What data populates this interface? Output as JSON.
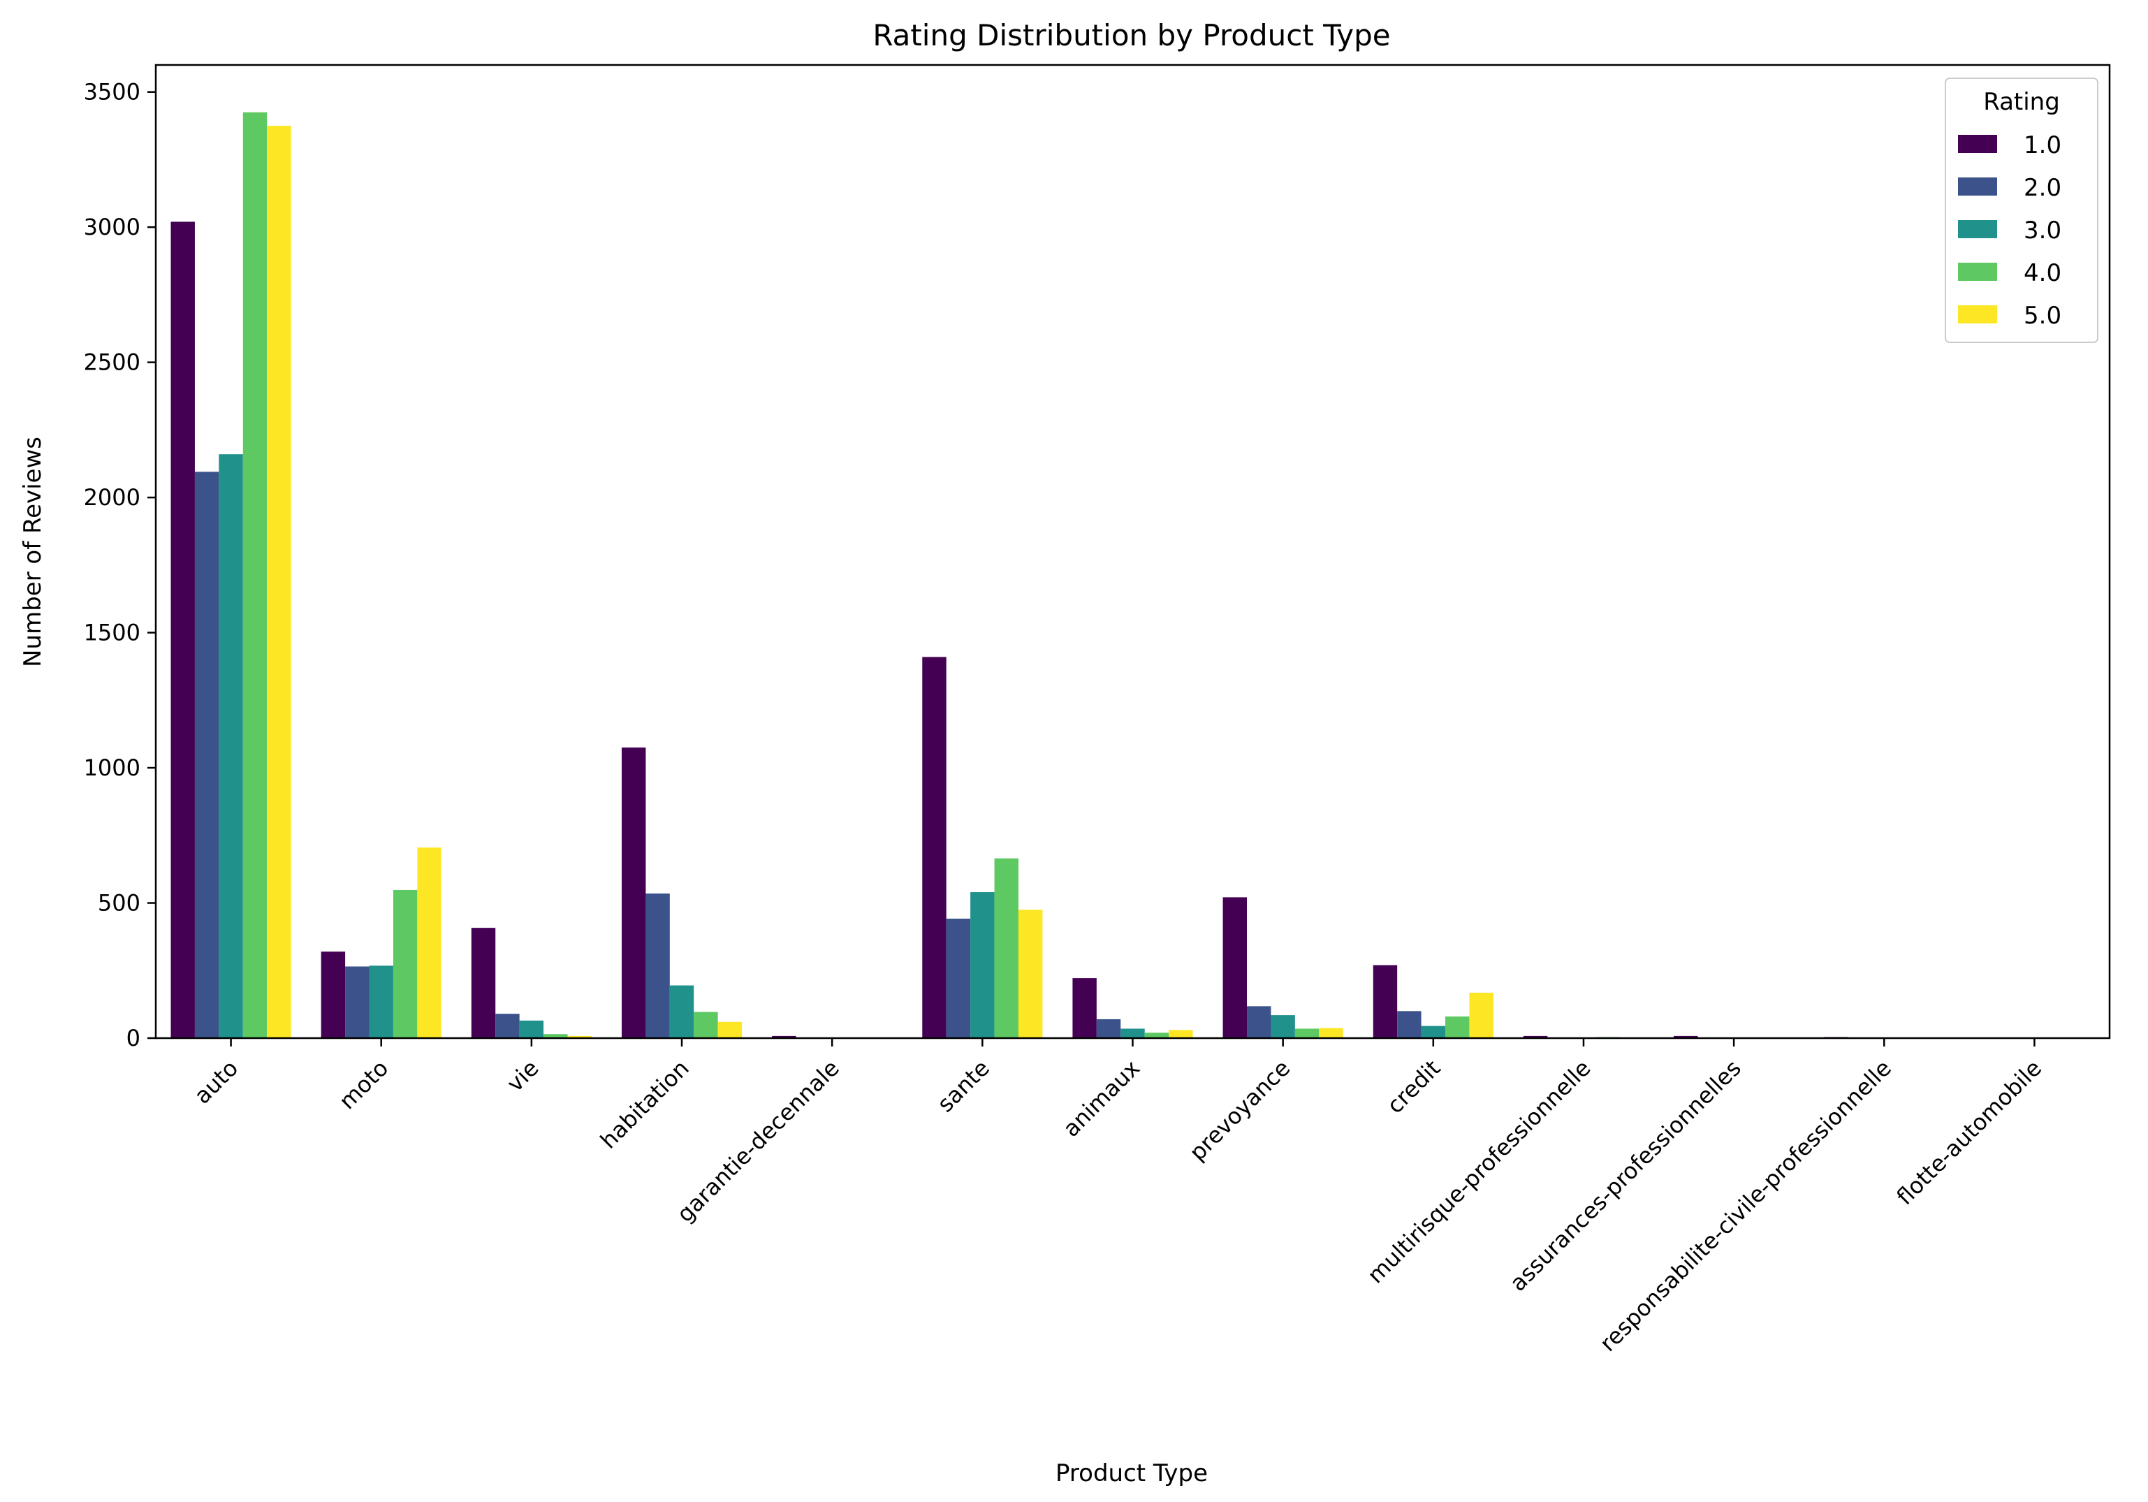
{
  "chart_data": {
    "type": "bar",
    "title": "Rating Distribution by Product Type",
    "xlabel": "Product Type",
    "ylabel": "Number of Reviews",
    "ylim": [
      0,
      3600
    ],
    "yticks": [
      0,
      500,
      1000,
      1500,
      2000,
      2500,
      3000,
      3500
    ],
    "tick_rotation_deg": 45,
    "grid": false,
    "legend": {
      "title": "Rating",
      "placement": "top-right"
    },
    "categories": [
      "auto",
      "moto",
      "vie",
      "habitation",
      "garantie-decennale",
      "sante",
      "animaux",
      "prevoyance",
      "credit",
      "multirisque-professionnelle",
      "assurances-professionnelles",
      "responsabilite-civile-professionnelle",
      "flotte-automobile"
    ],
    "series": [
      {
        "name": "1.0",
        "color": "#440154",
        "values": [
          3020,
          320,
          408,
          1075,
          8,
          1410,
          222,
          521,
          270,
          8,
          8,
          4,
          1
        ]
      },
      {
        "name": "2.0",
        "color": "#3b528b",
        "values": [
          2095,
          265,
          90,
          535,
          0,
          442,
          70,
          118,
          100,
          0,
          0,
          0,
          0
        ]
      },
      {
        "name": "3.0",
        "color": "#21918c",
        "values": [
          2160,
          268,
          65,
          195,
          0,
          540,
          35,
          85,
          45,
          0,
          0,
          0,
          0
        ]
      },
      {
        "name": "4.0",
        "color": "#5ec962",
        "values": [
          3425,
          548,
          15,
          97,
          0,
          665,
          20,
          35,
          80,
          4,
          0,
          0,
          0
        ]
      },
      {
        "name": "5.0",
        "color": "#fde725",
        "values": [
          3375,
          705,
          8,
          60,
          0,
          475,
          30,
          37,
          168,
          0,
          0,
          0,
          0
        ]
      }
    ]
  }
}
